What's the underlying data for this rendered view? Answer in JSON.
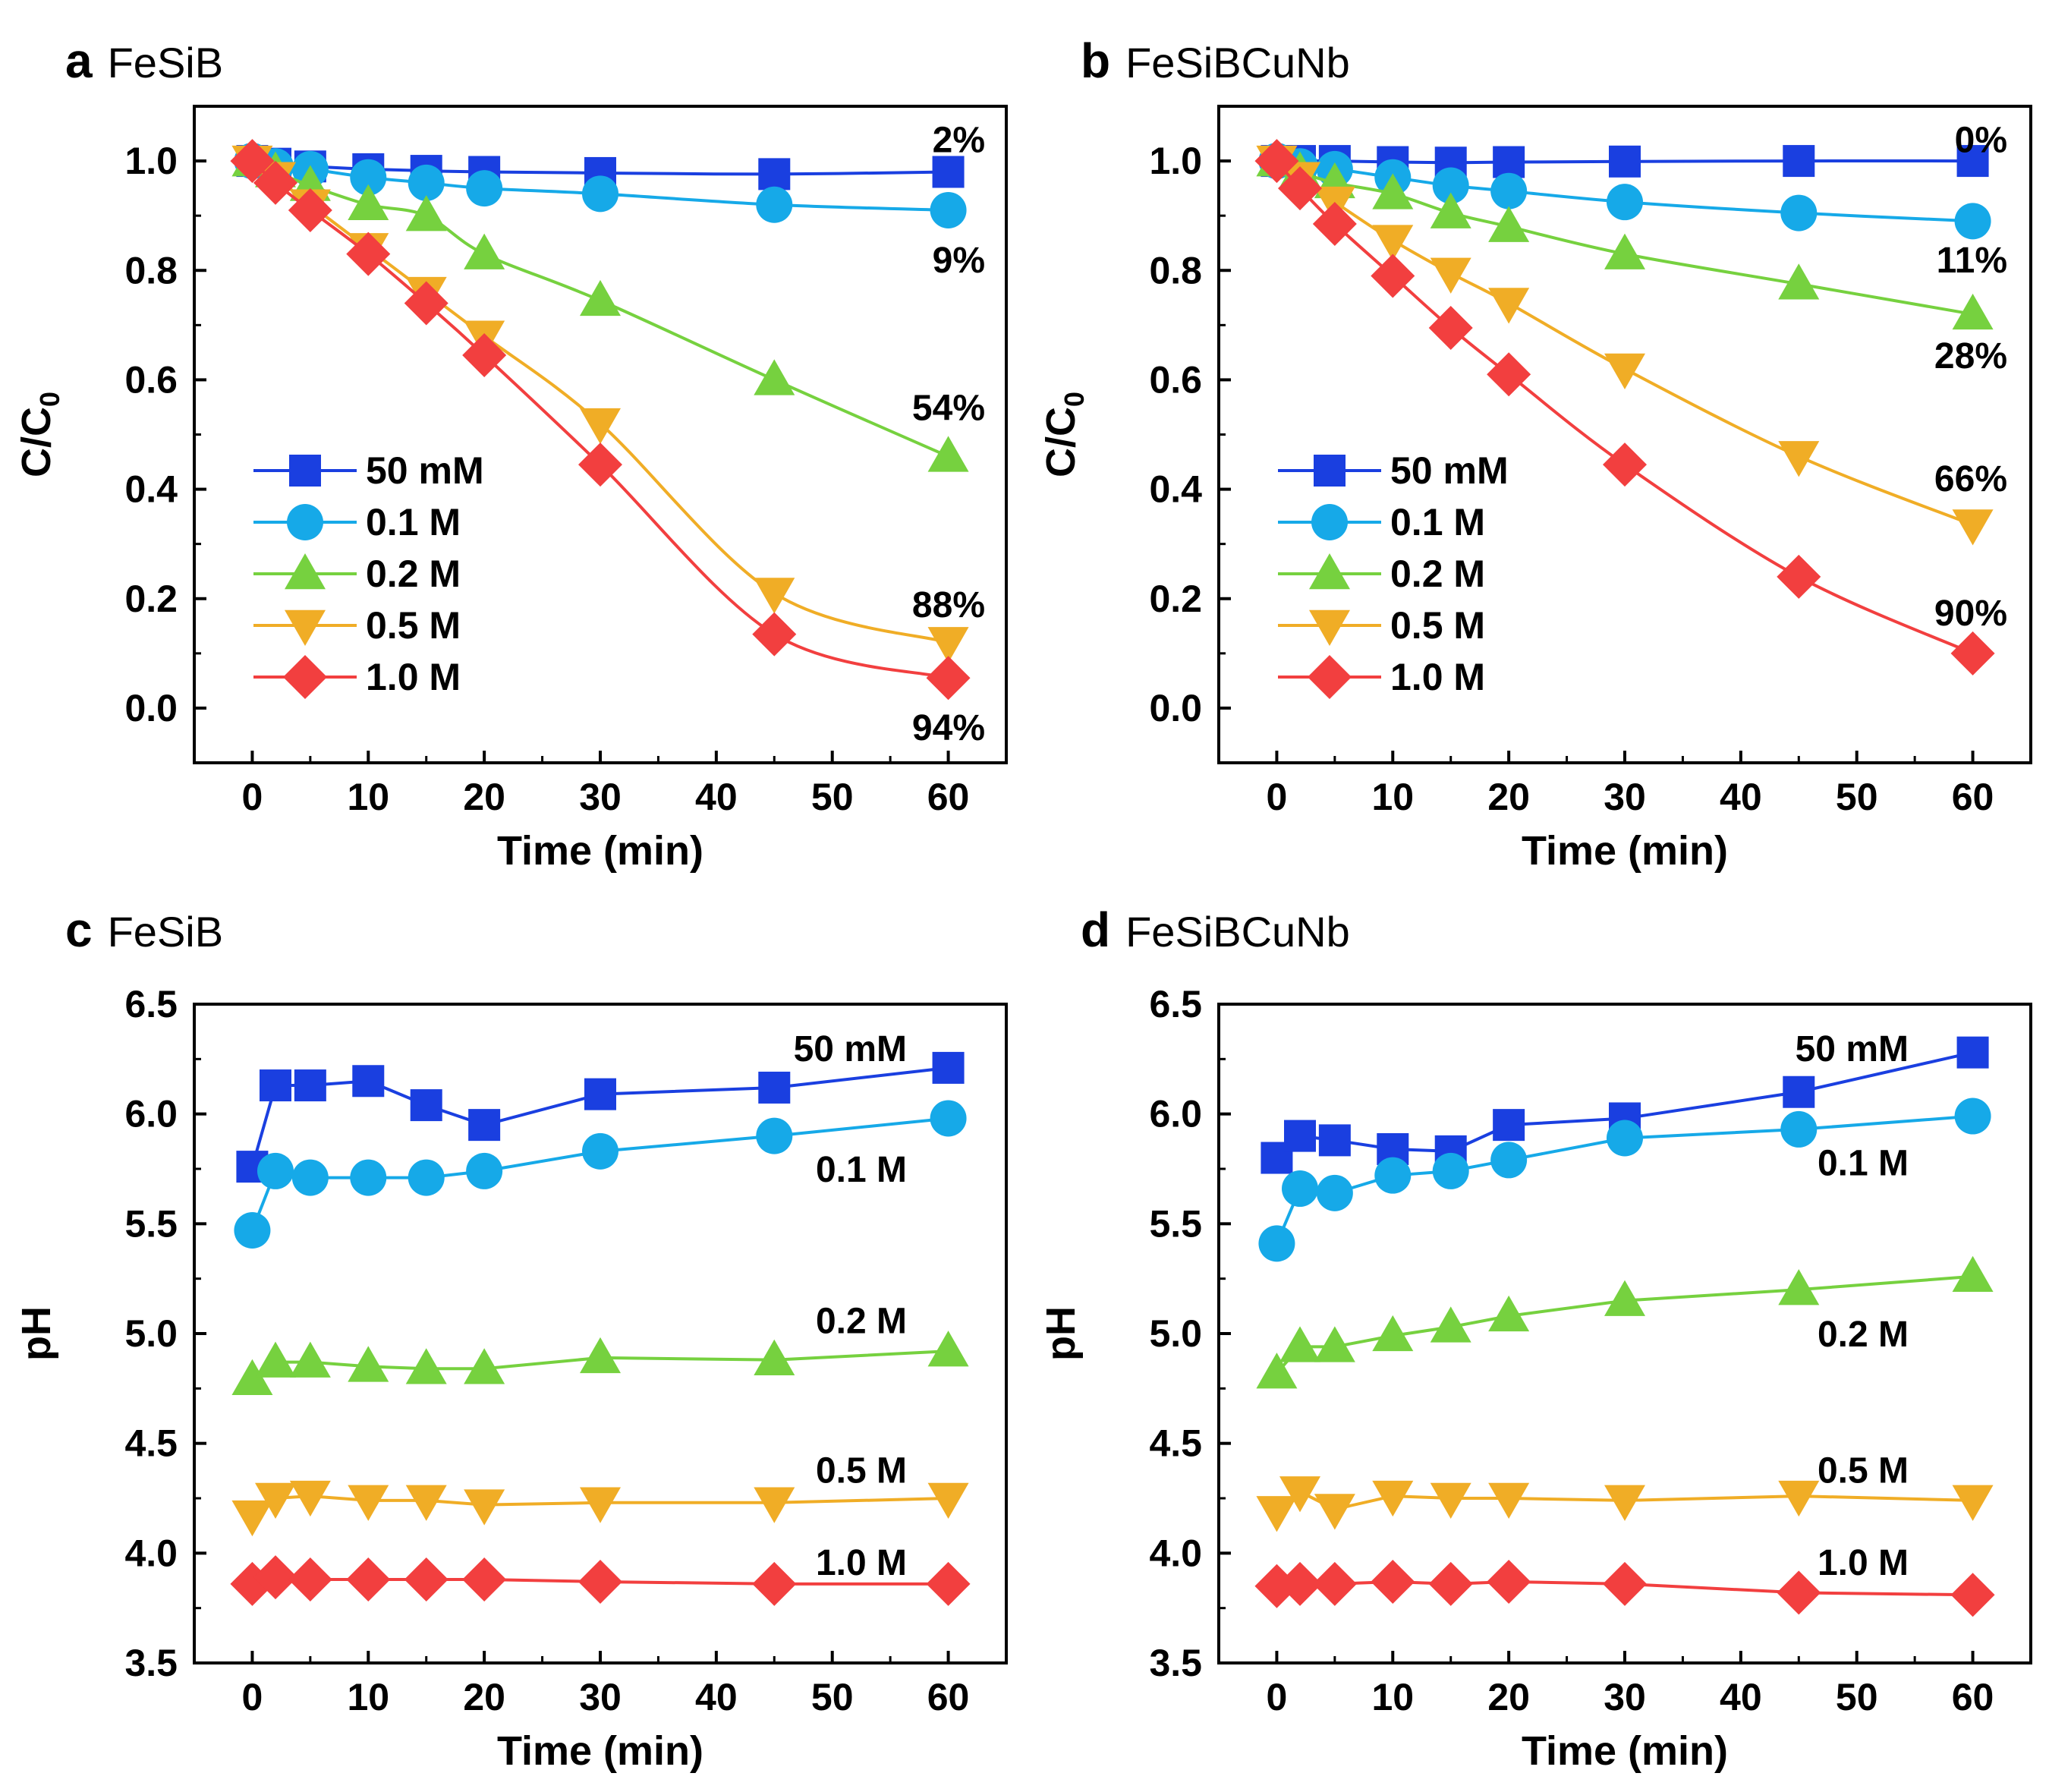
{
  "figure": {
    "panel_count": 4
  },
  "chart_data": [
    {
      "type": "line",
      "panel": "a",
      "title": "FeSiB",
      "xlabel": "Time (min)",
      "ylabel": "C/C0",
      "ylabel_main": "C/C",
      "ylabel_sub": "0",
      "xlim": [
        -5,
        65
      ],
      "ylim": [
        -0.1,
        1.1
      ],
      "xticks": [
        0,
        10,
        20,
        30,
        40,
        50,
        60
      ],
      "yticks": [
        0.0,
        0.2,
        0.4,
        0.6,
        0.8,
        1.0
      ],
      "ytick_labels": [
        "0.0",
        "0.2",
        "0.4",
        "0.6",
        "0.8",
        "1.0"
      ],
      "x": [
        0,
        2,
        5,
        10,
        15,
        20,
        30,
        45,
        60
      ],
      "series": [
        {
          "name": "50 mM",
          "color": "#1a3fe0",
          "marker": "square",
          "values": [
            1.0,
            0.995,
            0.99,
            0.985,
            0.982,
            0.98,
            0.978,
            0.976,
            0.98
          ]
        },
        {
          "name": "0.1 M",
          "color": "#16a9e8",
          "marker": "circle",
          "values": [
            1.0,
            0.99,
            0.985,
            0.97,
            0.96,
            0.95,
            0.94,
            0.92,
            0.91
          ]
        },
        {
          "name": "0.2 M",
          "color": "#76d13f",
          "marker": "triangle-up",
          "values": [
            1.0,
            0.98,
            0.955,
            0.92,
            0.9,
            0.83,
            0.745,
            0.6,
            0.46
          ]
        },
        {
          "name": "0.5 M",
          "color": "#f0ad26",
          "marker": "triangle-down",
          "values": [
            1.0,
            0.97,
            0.92,
            0.84,
            0.76,
            0.68,
            0.52,
            0.21,
            0.12
          ]
        },
        {
          "name": "1.0 M",
          "color": "#f23f3f",
          "marker": "diamond",
          "values": [
            1.0,
            0.96,
            0.91,
            0.83,
            0.74,
            0.645,
            0.445,
            0.135,
            0.055
          ]
        }
      ],
      "legend_position": "center-left",
      "annotations": [
        {
          "text": "2%",
          "x": 60,
          "y": 1.04
        },
        {
          "text": "9%",
          "x": 60,
          "y": 0.82
        },
        {
          "text": "54%",
          "x": 60,
          "y": 0.55
        },
        {
          "text": "88%",
          "x": 60,
          "y": 0.19
        },
        {
          "text": "94%",
          "x": 60,
          "y": -0.035
        }
      ]
    },
    {
      "type": "line",
      "panel": "b",
      "title": "FeSiBCuNb",
      "xlabel": "Time (min)",
      "ylabel": "C/C0",
      "ylabel_main": "C/C",
      "ylabel_sub": "0",
      "xlim": [
        -5,
        65
      ],
      "ylim": [
        -0.1,
        1.1
      ],
      "xticks": [
        0,
        10,
        20,
        30,
        40,
        50,
        60
      ],
      "yticks": [
        0.0,
        0.2,
        0.4,
        0.6,
        0.8,
        1.0
      ],
      "ytick_labels": [
        "0.0",
        "0.2",
        "0.4",
        "0.6",
        "0.8",
        "1.0"
      ],
      "x": [
        0,
        2,
        5,
        10,
        15,
        20,
        30,
        45,
        60
      ],
      "series": [
        {
          "name": "50 mM",
          "color": "#1a3fe0",
          "marker": "square",
          "values": [
            1.0,
            1.0,
            1.0,
            0.998,
            0.997,
            0.998,
            0.999,
            1.0,
            1.0
          ]
        },
        {
          "name": "0.1 M",
          "color": "#16a9e8",
          "marker": "circle",
          "values": [
            1.0,
            0.99,
            0.985,
            0.97,
            0.955,
            0.945,
            0.925,
            0.905,
            0.89
          ]
        },
        {
          "name": "0.2 M",
          "color": "#76d13f",
          "marker": "triangle-up",
          "values": [
            1.0,
            0.98,
            0.96,
            0.94,
            0.905,
            0.88,
            0.83,
            0.775,
            0.72
          ]
        },
        {
          "name": "0.5 M",
          "color": "#f0ad26",
          "marker": "triangle-down",
          "values": [
            1.0,
            0.97,
            0.925,
            0.855,
            0.795,
            0.74,
            0.62,
            0.46,
            0.335
          ]
        },
        {
          "name": "1.0 M",
          "color": "#f23f3f",
          "marker": "diamond",
          "values": [
            1.0,
            0.95,
            0.885,
            0.79,
            0.695,
            0.61,
            0.445,
            0.24,
            0.1
          ]
        }
      ],
      "legend_position": "center-left",
      "annotations": [
        {
          "text": "0%",
          "x": 60,
          "y": 1.04
        },
        {
          "text": "11%",
          "x": 60,
          "y": 0.82
        },
        {
          "text": "28%",
          "x": 60,
          "y": 0.645
        },
        {
          "text": "66%",
          "x": 60,
          "y": 0.42
        },
        {
          "text": "90%",
          "x": 60,
          "y": 0.175
        }
      ]
    },
    {
      "type": "line",
      "panel": "c",
      "title": "FeSiB",
      "xlabel": "Time (min)",
      "ylabel": "pH",
      "xlim": [
        -5,
        65
      ],
      "ylim": [
        3.5,
        6.5
      ],
      "xticks": [
        0,
        10,
        20,
        30,
        40,
        50,
        60
      ],
      "yticks": [
        3.5,
        4.0,
        4.5,
        5.0,
        5.5,
        6.0,
        6.5
      ],
      "ytick_labels": [
        "3.5",
        "4.0",
        "4.5",
        "5.0",
        "5.5",
        "6.0",
        "6.5"
      ],
      "x": [
        0,
        2,
        5,
        10,
        15,
        20,
        30,
        45,
        60
      ],
      "series": [
        {
          "name": "50 mM",
          "color": "#1a3fe0",
          "marker": "square",
          "values": [
            5.76,
            6.13,
            6.13,
            6.15,
            6.04,
            5.95,
            6.09,
            6.12,
            6.21
          ]
        },
        {
          "name": "0.1 M",
          "color": "#16a9e8",
          "marker": "circle",
          "values": [
            5.47,
            5.74,
            5.71,
            5.71,
            5.71,
            5.74,
            5.83,
            5.9,
            5.98
          ]
        },
        {
          "name": "0.2 M",
          "color": "#76d13f",
          "marker": "triangle-up",
          "values": [
            4.79,
            4.87,
            4.87,
            4.85,
            4.84,
            4.84,
            4.89,
            4.88,
            4.92
          ]
        },
        {
          "name": "0.5 M",
          "color": "#f0ad26",
          "marker": "triangle-down",
          "values": [
            4.17,
            4.25,
            4.26,
            4.24,
            4.24,
            4.22,
            4.23,
            4.23,
            4.25
          ]
        },
        {
          "name": "1.0 M",
          "color": "#f23f3f",
          "marker": "diamond",
          "values": [
            3.86,
            3.89,
            3.88,
            3.88,
            3.88,
            3.88,
            3.87,
            3.86,
            3.86
          ]
        }
      ],
      "annotations": [
        {
          "text": "50 mM",
          "x": 52,
          "y": 6.3
        },
        {
          "text": "0.1 M",
          "x": 52,
          "y": 5.75
        },
        {
          "text": "0.2 M",
          "x": 52,
          "y": 5.06
        },
        {
          "text": "0.5 M",
          "x": 52,
          "y": 4.38
        },
        {
          "text": "1.0 M",
          "x": 52,
          "y": 3.96
        }
      ]
    },
    {
      "type": "line",
      "panel": "d",
      "title": "FeSiBCuNb",
      "xlabel": "Time (min)",
      "ylabel": "pH",
      "xlim": [
        -5,
        65
      ],
      "ylim": [
        3.5,
        6.5
      ],
      "xticks": [
        0,
        10,
        20,
        30,
        40,
        50,
        60
      ],
      "yticks": [
        3.5,
        4.0,
        4.5,
        5.0,
        5.5,
        6.0,
        6.5
      ],
      "ytick_labels": [
        "3.5",
        "4.0",
        "4.5",
        "5.0",
        "5.5",
        "6.0",
        "6.5"
      ],
      "x": [
        0,
        2,
        5,
        10,
        15,
        20,
        30,
        45,
        60
      ],
      "series": [
        {
          "name": "50 mM",
          "color": "#1a3fe0",
          "marker": "square",
          "values": [
            5.8,
            5.9,
            5.88,
            5.84,
            5.83,
            5.95,
            5.98,
            6.1,
            6.28
          ]
        },
        {
          "name": "0.1 M",
          "color": "#16a9e8",
          "marker": "circle",
          "values": [
            5.41,
            5.66,
            5.64,
            5.72,
            5.74,
            5.79,
            5.89,
            5.93,
            5.99
          ]
        },
        {
          "name": "0.2 M",
          "color": "#76d13f",
          "marker": "triangle-up",
          "values": [
            4.82,
            4.94,
            4.94,
            4.99,
            5.03,
            5.08,
            5.15,
            5.2,
            5.26
          ]
        },
        {
          "name": "0.5 M",
          "color": "#f0ad26",
          "marker": "triangle-down",
          "values": [
            4.19,
            4.28,
            4.2,
            4.26,
            4.25,
            4.25,
            4.24,
            4.26,
            4.24
          ]
        },
        {
          "name": "1.0 M",
          "color": "#f23f3f",
          "marker": "diamond",
          "values": [
            3.85,
            3.86,
            3.86,
            3.87,
            3.86,
            3.87,
            3.86,
            3.82,
            3.81
          ]
        }
      ],
      "annotations": [
        {
          "text": "50 mM",
          "x": 52,
          "y": 6.3
        },
        {
          "text": "0.1 M",
          "x": 52,
          "y": 5.78
        },
        {
          "text": "0.2 M",
          "x": 52,
          "y": 5.0
        },
        {
          "text": "0.5 M",
          "x": 52,
          "y": 4.38
        },
        {
          "text": "1.0 M",
          "x": 52,
          "y": 3.96
        }
      ]
    }
  ]
}
